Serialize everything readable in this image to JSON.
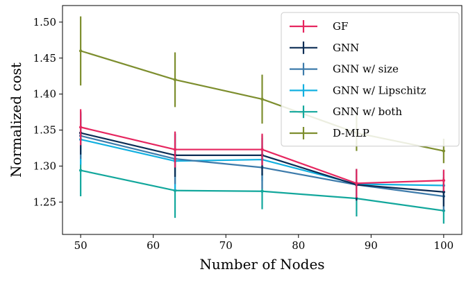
{
  "chart_data": {
    "type": "line",
    "xlabel": "Number of Nodes",
    "ylabel": "Normalized cost",
    "xlim": [
      47.5,
      102.5
    ],
    "ylim": [
      1.205,
      1.523
    ],
    "xticks": [
      50,
      60,
      70,
      80,
      90,
      100
    ],
    "yticks": [
      1.25,
      1.3,
      1.35,
      1.4,
      1.45,
      1.5
    ],
    "x": [
      50,
      63,
      75,
      88,
      100
    ],
    "grid": false,
    "legend_position": "top-right",
    "series": [
      {
        "name": "GF",
        "color": "#e6265f",
        "values": [
          1.354,
          1.323,
          1.323,
          1.276,
          1.28
        ],
        "errors": [
          0.025,
          0.025,
          0.022,
          0.02,
          0.015
        ]
      },
      {
        "name": "GNN",
        "color": "#0c2d55",
        "values": [
          1.346,
          1.315,
          1.315,
          1.274,
          1.264
        ],
        "errors": [
          0.03,
          0.03,
          0.028,
          0.022,
          0.02
        ]
      },
      {
        "name": "GNN w/ size",
        "color": "#3d7bab",
        "values": [
          1.342,
          1.31,
          1.298,
          1.274,
          1.258
        ],
        "errors": [
          0.032,
          0.035,
          0.03,
          0.022,
          0.02
        ]
      },
      {
        "name": "GNN w/ Lipschitz",
        "color": "#12b0e0",
        "values": [
          1.337,
          1.307,
          1.309,
          1.275,
          1.273
        ],
        "errors": [
          0.035,
          0.04,
          0.03,
          0.02,
          0.02
        ]
      },
      {
        "name": "GNN w/ both",
        "color": "#12a79c",
        "values": [
          1.294,
          1.266,
          1.265,
          1.255,
          1.238
        ],
        "errors": [
          0.036,
          0.038,
          0.025,
          0.025,
          0.018
        ]
      },
      {
        "name": "D-MLP",
        "color": "#7d8e2e",
        "values": [
          1.46,
          1.42,
          1.393,
          1.346,
          1.321
        ],
        "errors": [
          0.048,
          0.038,
          0.034,
          0.025,
          0.017
        ]
      }
    ]
  }
}
